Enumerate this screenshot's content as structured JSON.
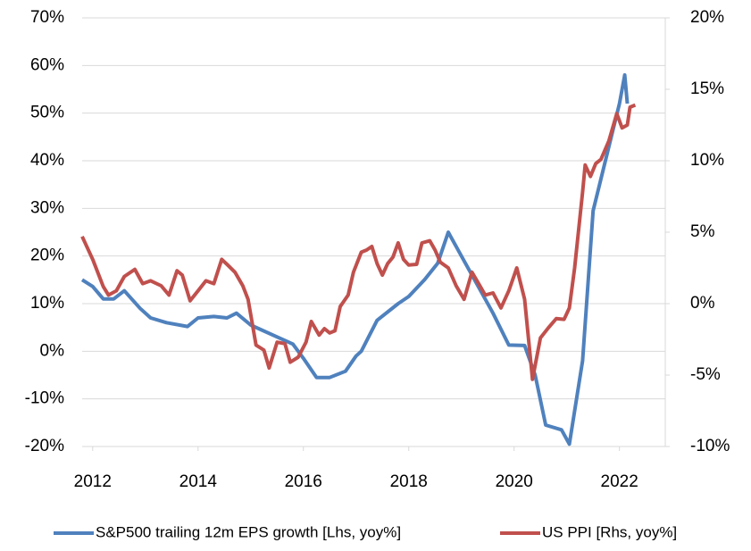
{
  "chart_data": {
    "type": "line",
    "xlim": [
      2011.8,
      2022.87
    ],
    "xticks": [
      2012,
      2014,
      2016,
      2018,
      2020,
      2022
    ],
    "ylim": [
      -20,
      70
    ],
    "yticks": [
      {
        "value": -20,
        "label": "-20%"
      },
      {
        "value": -10,
        "label": "-10%"
      },
      {
        "value": 0,
        "label": "0%"
      },
      {
        "value": 10,
        "label": "10%"
      },
      {
        "value": 20,
        "label": "20%"
      },
      {
        "value": 30,
        "label": "30%"
      },
      {
        "value": 40,
        "label": "40%"
      },
      {
        "value": 50,
        "label": "50%"
      },
      {
        "value": 60,
        "label": "60%"
      },
      {
        "value": 70,
        "label": "70%"
      }
    ],
    "y2lim": [
      -10,
      20
    ],
    "y2ticks": [
      {
        "value": -10,
        "label": "-10%"
      },
      {
        "value": -5,
        "label": "-5%"
      },
      {
        "value": 0,
        "label": "0%"
      },
      {
        "value": 5,
        "label": "5%"
      },
      {
        "value": 10,
        "label": "10%"
      },
      {
        "value": 15,
        "label": "15%"
      },
      {
        "value": 20,
        "label": "20%"
      }
    ],
    "grid": true,
    "legend": "bottom",
    "series": [
      {
        "name": "S&P500 trailing 12m EPS growth [Lhs, yoy%]",
        "color": "#4f81bd",
        "x": [
          2011.8,
          2012.0,
          2012.2,
          2012.4,
          2012.6,
          2012.9,
          2013.1,
          2013.4,
          2013.8,
          2014.0,
          2014.3,
          2014.55,
          2014.73,
          2015.0,
          2015.5,
          2015.8,
          2016.0,
          2016.25,
          2016.5,
          2016.8,
          2017.0,
          2017.1,
          2017.4,
          2017.8,
          2018.0,
          2018.3,
          2018.55,
          2018.75,
          2019.0,
          2019.3,
          2019.6,
          2019.9,
          2020.2,
          2020.4,
          2020.6,
          2020.9,
          2021.05,
          2021.3,
          2021.5,
          2021.8,
          2022.0,
          2022.1,
          2022.15
        ],
        "values": [
          15,
          13.6,
          11,
          11,
          12.7,
          9,
          7,
          6,
          5.2,
          7,
          7.3,
          7,
          8,
          5.5,
          3,
          1.5,
          -1.5,
          -5.5,
          -5.5,
          -4.2,
          -1,
          0,
          6.5,
          10,
          11.5,
          15,
          18.5,
          25,
          20,
          14,
          8,
          1.3,
          1.2,
          -5,
          -15.5,
          -16.5,
          -19.5,
          -2,
          29.5,
          43,
          52,
          58,
          52
        ]
      },
      {
        "name": "US PPI [Rhs, yoy%]",
        "color": "#c0504d",
        "axis": "y2",
        "x": [
          2011.8,
          2012.0,
          2012.2,
          2012.3,
          2012.45,
          2012.6,
          2012.8,
          2012.95,
          2013.1,
          2013.3,
          2013.45,
          2013.6,
          2013.7,
          2013.85,
          2014.0,
          2014.15,
          2014.3,
          2014.45,
          2014.55,
          2014.7,
          2014.85,
          2014.95,
          2015.1,
          2015.25,
          2015.35,
          2015.5,
          2015.65,
          2015.75,
          2015.9,
          2016.05,
          2016.15,
          2016.3,
          2016.4,
          2016.5,
          2016.6,
          2016.7,
          2016.85,
          2016.95,
          2017.1,
          2017.2,
          2017.3,
          2017.4,
          2017.5,
          2017.6,
          2017.7,
          2017.8,
          2017.9,
          2018.0,
          2018.15,
          2018.25,
          2018.4,
          2018.5,
          2018.6,
          2018.75,
          2018.9,
          2019.05,
          2019.2,
          2019.35,
          2019.45,
          2019.6,
          2019.75,
          2019.9,
          2020.05,
          2020.2,
          2020.35,
          2020.5,
          2020.65,
          2020.8,
          2020.95,
          2021.05,
          2021.15,
          2021.3,
          2021.35,
          2021.45,
          2021.55,
          2021.65,
          2021.8,
          2021.95,
          2022.05,
          2022.15,
          2022.2,
          2022.3
        ],
        "values": [
          4.7,
          3.1,
          1.2,
          0.6,
          0.9,
          1.9,
          2.4,
          1.4,
          1.6,
          1.25,
          0.6,
          2.3,
          2,
          0.2,
          0.9,
          1.6,
          1.4,
          3.1,
          2.75,
          2.2,
          1.25,
          0.3,
          -2.9,
          -3.25,
          -4.5,
          -2.7,
          -2.8,
          -4.1,
          -3.75,
          -2.7,
          -1.25,
          -2.2,
          -1.75,
          -2.05,
          -1.9,
          -0.2,
          0.6,
          2.2,
          3.6,
          3.75,
          4,
          2.8,
          2,
          2.8,
          3.25,
          4.25,
          3.1,
          2.7,
          2.75,
          4.25,
          4.4,
          3.75,
          2.9,
          2.5,
          1.25,
          0.3,
          2.2,
          1.25,
          0.6,
          0.75,
          -0.3,
          0.9,
          2.5,
          0.3,
          -5.3,
          -2.4,
          -1.7,
          -1.05,
          -1.1,
          -0.3,
          2.5,
          7.8,
          9.7,
          8.9,
          9.8,
          10.1,
          11.4,
          13.3,
          12.3,
          12.5,
          13.75,
          13.9
        ]
      }
    ]
  }
}
